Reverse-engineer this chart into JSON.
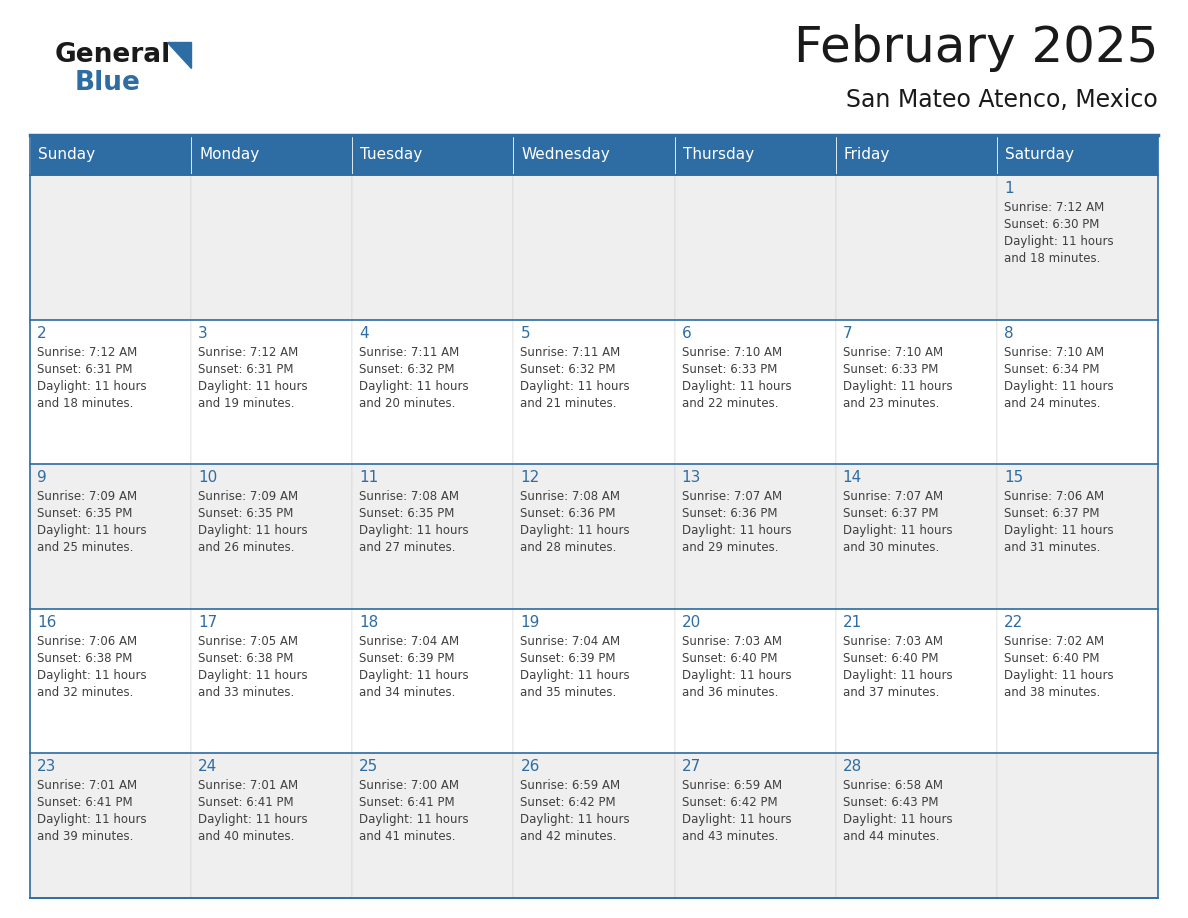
{
  "title": "February 2025",
  "subtitle": "San Mateo Atenco, Mexico",
  "days_of_week": [
    "Sunday",
    "Monday",
    "Tuesday",
    "Wednesday",
    "Thursday",
    "Friday",
    "Saturday"
  ],
  "header_bg": "#2E6DA4",
  "header_text": "#FFFFFF",
  "cell_bg_row0": "#EFEFEF",
  "cell_bg_row1": "#FFFFFF",
  "cell_bg_row2": "#EFEFEF",
  "cell_bg_row3": "#FFFFFF",
  "cell_bg_row4": "#EFEFEF",
  "day_number_color": "#2E6DA4",
  "info_text_color": "#404040",
  "border_color": "#2E6DA4",
  "title_color": "#1a1a1a",
  "subtitle_color": "#1a1a1a",
  "logo_general_color": "#1a1a1a",
  "logo_blue_color": "#2E6DA4",
  "logo_triangle_color": "#2E6DA4",
  "calendar_data": [
    [
      null,
      null,
      null,
      null,
      null,
      null,
      {
        "day": 1,
        "sunrise": "7:12 AM",
        "sunset": "6:30 PM",
        "daylight": "11 hours and 18 minutes."
      }
    ],
    [
      {
        "day": 2,
        "sunrise": "7:12 AM",
        "sunset": "6:31 PM",
        "daylight": "11 hours and 18 minutes."
      },
      {
        "day": 3,
        "sunrise": "7:12 AM",
        "sunset": "6:31 PM",
        "daylight": "11 hours and 19 minutes."
      },
      {
        "day": 4,
        "sunrise": "7:11 AM",
        "sunset": "6:32 PM",
        "daylight": "11 hours and 20 minutes."
      },
      {
        "day": 5,
        "sunrise": "7:11 AM",
        "sunset": "6:32 PM",
        "daylight": "11 hours and 21 minutes."
      },
      {
        "day": 6,
        "sunrise": "7:10 AM",
        "sunset": "6:33 PM",
        "daylight": "11 hours and 22 minutes."
      },
      {
        "day": 7,
        "sunrise": "7:10 AM",
        "sunset": "6:33 PM",
        "daylight": "11 hours and 23 minutes."
      },
      {
        "day": 8,
        "sunrise": "7:10 AM",
        "sunset": "6:34 PM",
        "daylight": "11 hours and 24 minutes."
      }
    ],
    [
      {
        "day": 9,
        "sunrise": "7:09 AM",
        "sunset": "6:35 PM",
        "daylight": "11 hours and 25 minutes."
      },
      {
        "day": 10,
        "sunrise": "7:09 AM",
        "sunset": "6:35 PM",
        "daylight": "11 hours and 26 minutes."
      },
      {
        "day": 11,
        "sunrise": "7:08 AM",
        "sunset": "6:35 PM",
        "daylight": "11 hours and 27 minutes."
      },
      {
        "day": 12,
        "sunrise": "7:08 AM",
        "sunset": "6:36 PM",
        "daylight": "11 hours and 28 minutes."
      },
      {
        "day": 13,
        "sunrise": "7:07 AM",
        "sunset": "6:36 PM",
        "daylight": "11 hours and 29 minutes."
      },
      {
        "day": 14,
        "sunrise": "7:07 AM",
        "sunset": "6:37 PM",
        "daylight": "11 hours and 30 minutes."
      },
      {
        "day": 15,
        "sunrise": "7:06 AM",
        "sunset": "6:37 PM",
        "daylight": "11 hours and 31 minutes."
      }
    ],
    [
      {
        "day": 16,
        "sunrise": "7:06 AM",
        "sunset": "6:38 PM",
        "daylight": "11 hours and 32 minutes."
      },
      {
        "day": 17,
        "sunrise": "7:05 AM",
        "sunset": "6:38 PM",
        "daylight": "11 hours and 33 minutes."
      },
      {
        "day": 18,
        "sunrise": "7:04 AM",
        "sunset": "6:39 PM",
        "daylight": "11 hours and 34 minutes."
      },
      {
        "day": 19,
        "sunrise": "7:04 AM",
        "sunset": "6:39 PM",
        "daylight": "11 hours and 35 minutes."
      },
      {
        "day": 20,
        "sunrise": "7:03 AM",
        "sunset": "6:40 PM",
        "daylight": "11 hours and 36 minutes."
      },
      {
        "day": 21,
        "sunrise": "7:03 AM",
        "sunset": "6:40 PM",
        "daylight": "11 hours and 37 minutes."
      },
      {
        "day": 22,
        "sunrise": "7:02 AM",
        "sunset": "6:40 PM",
        "daylight": "11 hours and 38 minutes."
      }
    ],
    [
      {
        "day": 23,
        "sunrise": "7:01 AM",
        "sunset": "6:41 PM",
        "daylight": "11 hours and 39 minutes."
      },
      {
        "day": 24,
        "sunrise": "7:01 AM",
        "sunset": "6:41 PM",
        "daylight": "11 hours and 40 minutes."
      },
      {
        "day": 25,
        "sunrise": "7:00 AM",
        "sunset": "6:41 PM",
        "daylight": "11 hours and 41 minutes."
      },
      {
        "day": 26,
        "sunrise": "6:59 AM",
        "sunset": "6:42 PM",
        "daylight": "11 hours and 42 minutes."
      },
      {
        "day": 27,
        "sunrise": "6:59 AM",
        "sunset": "6:42 PM",
        "daylight": "11 hours and 43 minutes."
      },
      {
        "day": 28,
        "sunrise": "6:58 AM",
        "sunset": "6:43 PM",
        "daylight": "11 hours and 44 minutes."
      },
      null
    ]
  ]
}
